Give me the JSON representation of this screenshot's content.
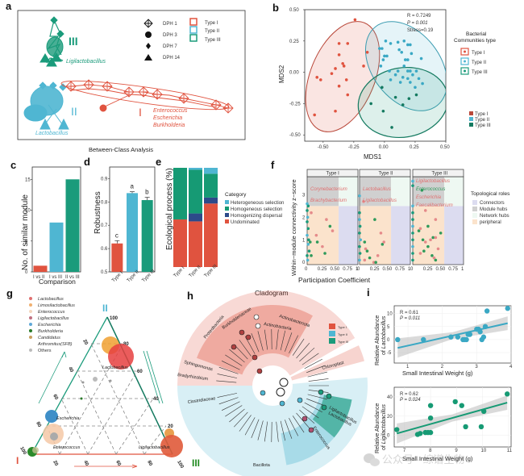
{
  "figure": {
    "panels": [
      "a",
      "b",
      "c",
      "d",
      "e",
      "f",
      "g",
      "h",
      "i"
    ],
    "colors": {
      "type1": "#e0533f",
      "type2": "#4fb6d2",
      "type3": "#1a9b7b",
      "dark_blue": "#2d4a8a",
      "grey_band": "#cccccc"
    }
  },
  "panel_a": {
    "label": "a",
    "title": "Between-Class Analysis",
    "group_labels": [
      "III",
      "II",
      "I"
    ],
    "genus_labels": {
      "III": [
        "Ligilactobacillus"
      ],
      "II": [
        "Lactobacillus"
      ],
      "I": [
        "Enterococcus",
        "Escherichia",
        "Burkholderia"
      ]
    },
    "shape_legend": [
      {
        "shape": "crosshair-diamond-icon",
        "label": "DPH 1"
      },
      {
        "shape": "circle-icon",
        "label": "DPH 3"
      },
      {
        "shape": "diamond-icon",
        "label": "DPH 7"
      },
      {
        "shape": "triangle-icon",
        "label": "DPH 14"
      }
    ],
    "type_legend": [
      "Type I",
      "Type II",
      "Type III"
    ]
  },
  "chart_data": [
    {
      "panel": "b",
      "type": "scatter",
      "title": "",
      "xlabel": "MDS1",
      "ylabel": "MDS2",
      "xlim": [
        -0.65,
        0.5
      ],
      "ylim": [
        -0.55,
        0.5
      ],
      "xticks": [
        "-0.50",
        "-0.25",
        "0.00",
        "0.25",
        "0.50"
      ],
      "yticks": [
        "0.50",
        "0.25",
        "0.00",
        "-0.25",
        "-0.50"
      ],
      "annotation": [
        "R = 0.7249",
        "P = 0.001",
        "Stress=0.19"
      ],
      "legend_title": "Bacterial Communities type",
      "legend": [
        "Type I",
        "Type II",
        "Type III"
      ],
      "legend_placement": "right",
      "series": [
        {
          "name": "Type I",
          "points": [
            [
              -0.24,
              0.42
            ],
            [
              -0.37,
              0.23
            ],
            [
              -0.3,
              0.23
            ],
            [
              -0.14,
              0.16
            ],
            [
              -0.37,
              0.14
            ],
            [
              -0.34,
              0.07
            ],
            [
              -0.4,
              0.03
            ],
            [
              -0.33,
              0.05
            ],
            [
              -0.17,
              0.05
            ],
            [
              -0.43,
              -0.01
            ],
            [
              -0.55,
              -0.04
            ],
            [
              -0.52,
              -0.06
            ],
            [
              -0.31,
              -0.06
            ],
            [
              -0.37,
              -0.11
            ],
            [
              -0.3,
              -0.18
            ],
            [
              -0.4,
              -0.31
            ],
            [
              -0.57,
              -0.34
            ]
          ]
        },
        {
          "name": "Type II",
          "points": [
            [
              0.01,
              0.25
            ],
            [
              0.05,
              0.23
            ],
            [
              0.11,
              0.24
            ],
            [
              0.16,
              0.25
            ],
            [
              0.19,
              0.22
            ],
            [
              0.21,
              0.22
            ],
            [
              -0.04,
              0.19
            ],
            [
              -0.02,
              0.19
            ],
            [
              0.12,
              0.18
            ],
            [
              0.14,
              0.16
            ],
            [
              0.22,
              0.15
            ],
            [
              0.3,
              0.11
            ],
            [
              0.0,
              0.13
            ],
            [
              0.02,
              0.13
            ],
            [
              0.17,
              0.1
            ],
            [
              0.19,
              0.1
            ],
            [
              -0.01,
              0.1
            ],
            [
              -0.03,
              0.05
            ],
            [
              0.16,
              0.05
            ],
            [
              0.04,
              0.01
            ],
            [
              0.11,
              0.01
            ],
            [
              0.19,
              0.01
            ],
            [
              0.21,
              0.01
            ],
            [
              0.26,
              0.01
            ],
            [
              0.09,
              -0.02
            ],
            [
              0.23,
              -0.02
            ],
            [
              0.15,
              -0.04
            ],
            [
              0.28,
              -0.05
            ],
            [
              0.19,
              -0.05
            ],
            [
              0.05,
              -0.06
            ],
            [
              0.13,
              -0.08
            ],
            [
              0.31,
              -0.09
            ],
            [
              0.21,
              -0.08
            ],
            [
              0.25,
              -0.12
            ]
          ]
        },
        {
          "name": "Type III",
          "points": [
            [
              -0.02,
              -0.12
            ],
            [
              0.09,
              -0.2
            ],
            [
              0.2,
              -0.21
            ],
            [
              -0.11,
              -0.25
            ],
            [
              0.15,
              -0.26
            ],
            [
              -0.01,
              -0.31
            ],
            [
              0.06,
              -0.44
            ],
            [
              0.26,
              -0.18
            ]
          ]
        }
      ]
    },
    {
      "panel": "c",
      "type": "bar",
      "title": "",
      "xlabel": "Comparison",
      "ylabel": "No. of similar module",
      "categories": [
        "I vs II",
        "I vs III",
        "II vs III"
      ],
      "values": [
        1,
        8,
        15
      ],
      "ylim": [
        0,
        17
      ],
      "yticks": [
        0,
        5,
        10,
        15
      ]
    },
    {
      "panel": "d",
      "type": "bar",
      "title": "",
      "xlabel": "",
      "ylabel": "Robustness",
      "categories": [
        "Type I",
        "Type II",
        "Type III"
      ],
      "values": [
        0.622,
        0.838,
        0.808
      ],
      "errors": [
        0.012,
        0.006,
        0.012
      ],
      "letters": [
        "c",
        "a",
        "b"
      ],
      "ylim": [
        0.5,
        0.95
      ],
      "yticks": [
        0.5,
        0.6,
        0.7,
        0.8,
        0.9
      ]
    },
    {
      "panel": "e",
      "type": "bar",
      "stacked": true,
      "title": "",
      "xlabel": "",
      "ylabel": "Ecological process (%)",
      "categories": [
        "Type I",
        "Type II",
        "Type III"
      ],
      "legend_title": "Category",
      "legend_placement": "right",
      "series": [
        {
          "name": "Undominated",
          "values": [
            48,
            46,
            64
          ]
        },
        {
          "name": "Homogenizing dispersal",
          "values": [
            0,
            8,
            6
          ]
        },
        {
          "name": "Homogeneous selection",
          "values": [
            52,
            44,
            24
          ]
        },
        {
          "name": "Heterogeneous selection",
          "values": [
            0,
            2,
            6
          ]
        }
      ],
      "ylim": [
        0,
        100
      ]
    },
    {
      "panel": "f",
      "type": "scatter",
      "title": "",
      "xlabel": "Participation Coefficient",
      "ylabel": "Within−module connectivity z−score",
      "facets": [
        "Type I",
        "Type II",
        "Type III"
      ],
      "xlim": [
        0,
        1
      ],
      "ylim": [
        -0.1,
        3.8
      ],
      "xticks": [
        "0",
        "0.25",
        "0.50",
        "0.75",
        "1"
      ],
      "yticks": [
        0,
        1,
        2,
        3
      ],
      "legend_title": "Topological roles",
      "legend": [
        "Connectors",
        "Module hubs",
        "Network hubs",
        "peripheral"
      ],
      "legend_placement": "right",
      "annotations": {
        "Type I": [
          "Corynebacterium",
          "Brachybacterium"
        ],
        "Type II": [
          "Lactobacillus",
          "Ligilactobacillus"
        ],
        "Type III": [
          "Ligilactobacillus",
          "Enterococcus",
          "Escherichia",
          "Faecalibacterium"
        ]
      },
      "facet_points": [
        [
          [
            0,
            2.6
          ],
          [
            0.02,
            2.5
          ],
          [
            0,
            2.3
          ],
          [
            0.01,
            2.0
          ],
          [
            0,
            1.8
          ],
          [
            0.02,
            1.5
          ],
          [
            0,
            1.2
          ],
          [
            0.03,
            1.0
          ],
          [
            0.06,
            0.9
          ],
          [
            0.02,
            0.8
          ],
          [
            0.04,
            0.5
          ],
          [
            0,
            0.3
          ],
          [
            0.01,
            0.1
          ],
          [
            0.08,
            2.2
          ],
          [
            0.08,
            0.3
          ],
          [
            0.18,
            1.2
          ],
          [
            0.2,
            0.9
          ],
          [
            0.3,
            0.7
          ],
          [
            0.35,
            0.4
          ],
          [
            0.38,
            1.9
          ],
          [
            0.45,
            1.6
          ],
          [
            0.5,
            1.4
          ]
        ],
        [
          [
            0,
            2.95
          ],
          [
            0.08,
            2.7
          ],
          [
            0,
            2.2
          ],
          [
            0,
            1.9
          ],
          [
            0.01,
            1.6
          ],
          [
            0,
            1.3
          ],
          [
            0.02,
            1.0
          ],
          [
            0,
            0.7
          ],
          [
            0.01,
            0.4
          ],
          [
            0,
            0.1
          ],
          [
            0.1,
            0.9
          ],
          [
            0.12,
            0.6
          ],
          [
            0.15,
            0.5
          ],
          [
            0.1,
            0.1
          ],
          [
            0.2,
            0.2
          ],
          [
            0.28,
            0
          ],
          [
            0.32,
            0
          ],
          [
            0.36,
            0.3
          ],
          [
            0.3,
            1.9
          ],
          [
            0.42,
            1.3
          ],
          [
            0.45,
            0.8
          ],
          [
            0.48,
            0.9
          ]
        ],
        [
          [
            0,
            3.6
          ],
          [
            0,
            3.4
          ],
          [
            0.18,
            3.2
          ],
          [
            0,
            2.5
          ],
          [
            0,
            2.2
          ],
          [
            0,
            1.9
          ],
          [
            0,
            1.6
          ],
          [
            0,
            1.3
          ],
          [
            0,
            1.0
          ],
          [
            0,
            0.7
          ],
          [
            0,
            0.4
          ],
          [
            0,
            0.1
          ],
          [
            0.12,
            1.4
          ],
          [
            0.15,
            1.5
          ],
          [
            0.2,
            1.0
          ],
          [
            0.25,
            0.9
          ],
          [
            0.3,
            0.7
          ],
          [
            0.35,
            1.0
          ],
          [
            0.4,
            1.1
          ],
          [
            0.45,
            1.1
          ],
          [
            0.38,
            0.3
          ],
          [
            0.42,
            0.2
          ],
          [
            0.45,
            0.1
          ],
          [
            0.5,
            0.6
          ],
          [
            0.55,
            1.3
          ],
          [
            0.25,
            2.3
          ],
          [
            0.3,
            1.6
          ],
          [
            0.45,
            1.9
          ],
          [
            0.22,
            0.5
          ],
          [
            0.15,
            0.4
          ]
        ]
      ]
    },
    {
      "panel": "g",
      "type": "scatter",
      "subtype": "ternary",
      "title": "",
      "axis_labels": [
        "I",
        "II",
        "III"
      ],
      "ticks": [
        "20",
        "40",
        "60",
        "80",
        "100"
      ],
      "legend": [
        "Lactobacillus",
        "Limosilactobacillus",
        "Enterococcus",
        "Ligilactobacillus",
        "Escherichia",
        "Burkholderia",
        "Candidatus Arthromitus(SFB)",
        "Others"
      ],
      "legend_placement": "top-left",
      "point_labels": [
        "Lactobacillus",
        "Escherichia",
        "Enterococcus",
        "Ligilactobacillus"
      ]
    },
    {
      "panel": "h",
      "type": "other",
      "subtype": "cladogram",
      "title": "Cladogram",
      "legend": [
        "Type I",
        "Type II",
        "Type III"
      ],
      "legend_placement": "right",
      "clade_labels": [
        "Actinobacteriota",
        "Actinobacteria",
        "Burkholderiaceae",
        "Proteobacteria",
        "Sphingomonas",
        "Bradyrhizobium",
        "Chloroplast",
        "Clostridiaceae",
        "Ligilactobacillus",
        "Lactobacillus",
        "Enterococcus",
        "Bacillota"
      ]
    },
    {
      "panel": "i-top",
      "type": "scatter",
      "title": "",
      "xlabel": "Small Intestinal Weight (g)",
      "ylabel": "Relative Abundance of Lactobacillus",
      "annotation": [
        "R = 0.61",
        "P = 0.011"
      ],
      "xlim": [
        0.6,
        4.0
      ],
      "ylim": [
        -9,
        13
      ],
      "xticks": [
        1,
        2,
        3,
        4
      ],
      "yticks": [
        -5,
        0,
        5,
        10
      ],
      "points": [
        [
          0.7,
          0
        ],
        [
          1.45,
          0
        ],
        [
          2.25,
          1
        ],
        [
          2.45,
          1
        ],
        [
          2.6,
          0
        ],
        [
          2.65,
          0
        ],
        [
          2.7,
          0
        ],
        [
          2.75,
          2
        ],
        [
          2.8,
          2
        ],
        [
          3.0,
          4
        ],
        [
          3.05,
          4
        ],
        [
          3.1,
          3
        ],
        [
          3.15,
          0
        ],
        [
          3.2,
          1
        ],
        [
          3.25,
          5
        ],
        [
          3.3,
          11
        ],
        [
          3.9,
          12
        ]
      ],
      "fit_line": [
        [
          0.7,
          -3.2
        ],
        [
          3.9,
          6.3
        ]
      ]
    },
    {
      "panel": "i-bottom",
      "type": "scatter",
      "title": "",
      "xlabel": "Small Intestinal Weight (g)",
      "ylabel": "Relative Abundance of Ligilactobacillus",
      "annotation": [
        "R = 0.62",
        "P = 0.024"
      ],
      "xlim": [
        6.6,
        11.1
      ],
      "ylim": [
        -12,
        50
      ],
      "xticks": [
        7,
        8,
        9,
        10,
        11
      ],
      "yticks": [
        0,
        20,
        40
      ],
      "points": [
        [
          6.7,
          6
        ],
        [
          7.5,
          1
        ],
        [
          7.6,
          2
        ],
        [
          7.8,
          3
        ],
        [
          7.9,
          3
        ],
        [
          8.0,
          3
        ],
        [
          8.0,
          18
        ],
        [
          8.0,
          31
        ],
        [
          8.95,
          35
        ],
        [
          9.2,
          31
        ],
        [
          9.35,
          9
        ],
        [
          9.95,
          9
        ],
        [
          10.05,
          25
        ],
        [
          10.95,
          43
        ]
      ],
      "fit_line": [
        [
          6.7,
          2
        ],
        [
          10.95,
          34
        ]
      ]
    }
  ],
  "watermark": {
    "text": "公众号 · 综谱生物",
    "icon": "wechat-icon"
  }
}
